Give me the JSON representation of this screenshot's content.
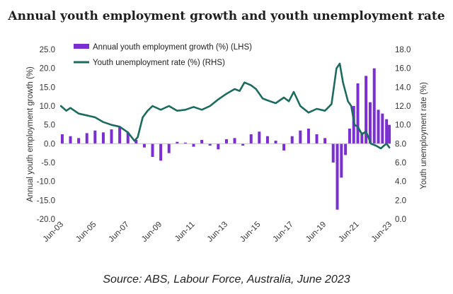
{
  "chart_data": {
    "type": "bar",
    "title": "Annual youth employment growth and youth unemployment rate",
    "source": "Source: ABS, Labour Force, Australia, June 2023",
    "ylabel_left": "Annual youth employment growth (%)",
    "ylabel_right": "Youth unemployment rate (%)",
    "ylim_left": [
      -20,
      25
    ],
    "ylim_right": [
      0,
      18
    ],
    "left_ticks": [
      "-20.0",
      "-15.0",
      "-10.0",
      "-5.0",
      "0.0",
      "5.0",
      "10.0",
      "15.0",
      "20.0",
      "25.0"
    ],
    "right_ticks": [
      "0.0",
      "2.0",
      "4.0",
      "6.0",
      "8.0",
      "10.0",
      "12.0",
      "14.0",
      "16.0",
      "18.0"
    ],
    "x_ticks": [
      "Jun-03",
      "Jun-05",
      "Jun-07",
      "Jun-09",
      "Jun-11",
      "Jun-13",
      "Jun-15",
      "Jun-17",
      "Jun-19",
      "Jun-21",
      "Jun-23"
    ],
    "x_range": [
      2003.417,
      2023.417
    ],
    "legend": {
      "position": "top-left"
    },
    "grid": false,
    "series": [
      {
        "name": "Annual youth employment growth (%) (LHS)",
        "axis": "left",
        "kind": "bar",
        "color": "#7b2fd0",
        "x": [
          2003.5,
          2004.0,
          2004.5,
          2005.0,
          2005.5,
          2006.0,
          2006.5,
          2007.0,
          2007.5,
          2008.0,
          2008.5,
          2009.0,
          2009.5,
          2010.0,
          2010.5,
          2011.0,
          2011.5,
          2012.0,
          2012.5,
          2013.0,
          2013.5,
          2014.0,
          2014.5,
          2015.0,
          2015.5,
          2016.0,
          2016.5,
          2017.0,
          2017.5,
          2018.0,
          2018.5,
          2019.0,
          2019.5,
          2020.0,
          2020.25,
          2020.5,
          2020.75,
          2021.0,
          2021.25,
          2021.5,
          2021.75,
          2022.0,
          2022.25,
          2022.5,
          2022.75,
          2023.0,
          2023.25,
          2023.42
        ],
        "values": [
          2.5,
          2.0,
          1.5,
          2.8,
          3.5,
          3.0,
          3.8,
          4.5,
          3.0,
          1.0,
          -1.0,
          -3.5,
          -4.5,
          -2.5,
          0.5,
          0.3,
          -0.8,
          1.0,
          -0.5,
          -1.5,
          1.2,
          1.5,
          -0.5,
          2.5,
          3.2,
          2.0,
          0.8,
          -1.8,
          2.0,
          3.5,
          4.0,
          2.5,
          1.5,
          -5.0,
          -17.5,
          -9.0,
          -3.0,
          4.0,
          10.0,
          16.0,
          3.0,
          18.0,
          11.0,
          20.0,
          9.0,
          8.0,
          6.5,
          5.0
        ]
      },
      {
        "name": "Youth unemployment rate (%) (RHS)",
        "axis": "right",
        "kind": "line",
        "color": "#1b6b5e",
        "x": [
          2003.42,
          2003.75,
          2004.0,
          2004.5,
          2005.0,
          2005.5,
          2006.0,
          2006.5,
          2007.0,
          2007.5,
          2007.9,
          2008.1,
          2008.4,
          2008.7,
          2009.0,
          2009.5,
          2010.0,
          2010.5,
          2011.0,
          2011.5,
          2012.0,
          2012.5,
          2013.0,
          2013.5,
          2014.0,
          2014.3,
          2014.6,
          2015.0,
          2015.3,
          2015.7,
          2016.0,
          2016.5,
          2017.0,
          2017.3,
          2017.6,
          2018.0,
          2018.5,
          2019.0,
          2019.5,
          2019.9,
          2020.2,
          2020.4,
          2020.6,
          2020.9,
          2021.1,
          2021.3,
          2021.5,
          2021.75,
          2022.0,
          2022.3,
          2022.6,
          2022.9,
          2023.1,
          2023.25,
          2023.42
        ],
        "values": [
          12.0,
          11.5,
          11.8,
          11.2,
          11.0,
          10.8,
          10.3,
          10.0,
          9.8,
          9.2,
          8.3,
          8.7,
          10.8,
          11.5,
          12.0,
          11.6,
          12.0,
          11.5,
          11.6,
          11.9,
          11.6,
          12.0,
          12.7,
          13.3,
          13.8,
          13.6,
          14.5,
          14.2,
          13.8,
          12.8,
          12.6,
          12.3,
          12.9,
          12.5,
          13.5,
          12.0,
          11.3,
          11.7,
          11.5,
          12.2,
          16.0,
          16.5,
          14.5,
          12.5,
          12.0,
          10.0,
          9.8,
          9.0,
          9.3,
          8.0,
          7.8,
          7.5,
          7.8,
          8.0,
          7.6
        ]
      }
    ]
  }
}
